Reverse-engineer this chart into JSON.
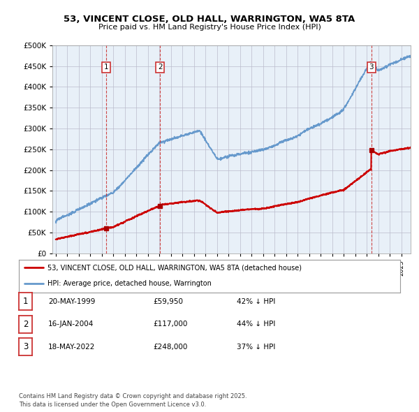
{
  "title": "53, VINCENT CLOSE, OLD HALL, WARRINGTON, WA5 8TA",
  "subtitle": "Price paid vs. HM Land Registry's House Price Index (HPI)",
  "sale_dates_decimal": [
    1999.38,
    2004.04,
    2022.38
  ],
  "sale_prices": [
    59950,
    117000,
    248000
  ],
  "sale_labels": [
    "1",
    "2",
    "3"
  ],
  "sale_notes": [
    "20-MAY-1999",
    "16-JAN-2004",
    "18-MAY-2022"
  ],
  "sale_amounts": [
    "£59,950",
    "£117,000",
    "£248,000"
  ],
  "sale_hpi": [
    "42% ↓ HPI",
    "44% ↓ HPI",
    "37% ↓ HPI"
  ],
  "legend_line1": "53, VINCENT CLOSE, OLD HALL, WARRINGTON, WA5 8TA (detached house)",
  "legend_line2": "HPI: Average price, detached house, Warrington",
  "footer": "Contains HM Land Registry data © Crown copyright and database right 2025.\nThis data is licensed under the Open Government Licence v3.0.",
  "line_color_red": "#cc0000",
  "line_color_blue": "#6699cc",
  "vline_color": "#cc3333",
  "bg_chart": "#e8f0f8",
  "ylim": [
    0,
    500000
  ],
  "yticks": [
    0,
    50000,
    100000,
    150000,
    200000,
    250000,
    300000,
    350000,
    400000,
    450000,
    500000
  ],
  "xlim_start": 1994.7,
  "xlim_end": 2025.8,
  "grid_color": "#bbbbcc",
  "marker_color": "#aa0000"
}
